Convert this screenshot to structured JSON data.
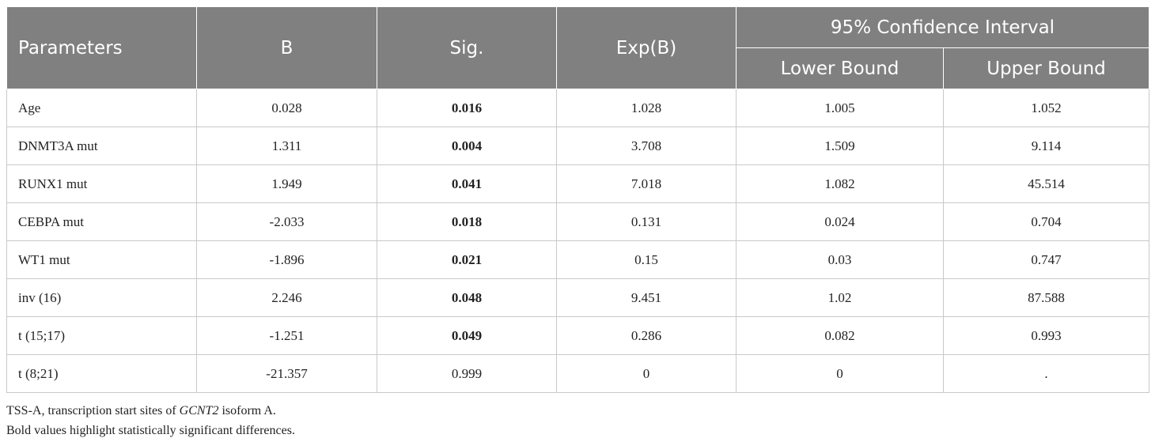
{
  "header": {
    "parameters": "Parameters",
    "b": "B",
    "sig": "Sig.",
    "expb": "Exp(B)",
    "ci": "95% Confidence Interval",
    "lower": "Lower Bound",
    "upper": "Upper Bound"
  },
  "rows": [
    {
      "param": "Age",
      "b": "0.028",
      "sig": "0.016",
      "expb": "1.028",
      "lower": "1.005",
      "upper": "1.052"
    },
    {
      "param": "DNMT3A mut",
      "b": "1.311",
      "sig": "0.004",
      "expb": "3.708",
      "lower": "1.509",
      "upper": "9.114"
    },
    {
      "param": "RUNX1 mut",
      "b": "1.949",
      "sig": "0.041",
      "expb": "7.018",
      "lower": "1.082",
      "upper": "45.514"
    },
    {
      "param": "CEBPA mut",
      "b": "-2.033",
      "sig": "0.018",
      "expb": "0.131",
      "lower": "0.024",
      "upper": "0.704"
    },
    {
      "param": "WT1 mut",
      "b": "-1.896",
      "sig": "0.021",
      "expb": "0.15",
      "lower": "0.03",
      "upper": "0.747"
    },
    {
      "param": "inv (16)",
      "b": "2.246",
      "sig": "0.048",
      "expb": "9.451",
      "lower": "1.02",
      "upper": "87.588"
    },
    {
      "param": "t (15;17)",
      "b": "-1.251",
      "sig": "0.049",
      "expb": "0.286",
      "lower": "0.082",
      "upper": "0.993"
    },
    {
      "param": "t (8;21)",
      "b": "-21.357",
      "sig": "0.999",
      "expb": "0",
      "lower": "0",
      "upper": "."
    }
  ],
  "notes": {
    "line1_prefix": "TSS-A, transcription start sites of ",
    "line1_gene": "GCNT2",
    "line1_suffix": " isoform A.",
    "line2": "Bold values highlight statistically significant differences."
  }
}
